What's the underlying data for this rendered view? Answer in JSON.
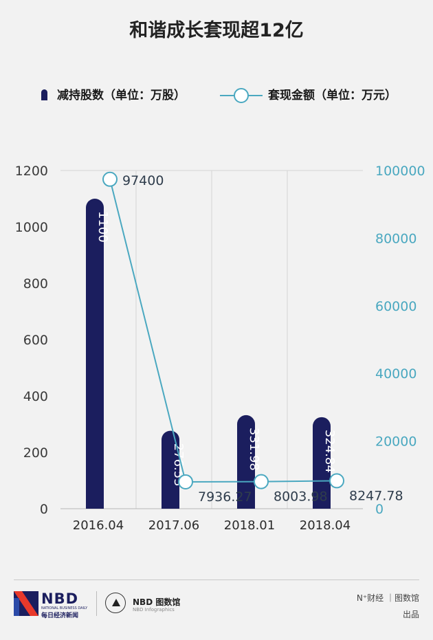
{
  "title": "和谐成长套现超12亿",
  "legend": {
    "bar_label": "减持股数（单位：万股）",
    "line_label": "套现金额（单位：万元）"
  },
  "colors": {
    "bar": "#1b1e5e",
    "line": "#4aa8c0",
    "grid": "#d4d4d4",
    "background": "#f2f2f2"
  },
  "chart_data": {
    "type": "bar",
    "categories": [
      "2016.04",
      "2017.06",
      "2018.01",
      "2018.04"
    ],
    "series": [
      {
        "name": "减持股数（单位：万股）",
        "type": "bar",
        "axis": "left",
        "values": [
          1100,
          276.53,
          331.98,
          324.84
        ]
      },
      {
        "name": "套现金额（单位：万元）",
        "type": "line",
        "axis": "right",
        "values": [
          97400,
          7936.27,
          8003.98,
          8247.78
        ]
      }
    ],
    "bar_labels": [
      "1100",
      "276.53",
      "331.98",
      "324.84"
    ],
    "line_labels": [
      "97400",
      "7936.27",
      "8003.98",
      "8247.78"
    ],
    "y_left": {
      "min": 0,
      "max": 1200,
      "ticks": [
        0,
        200,
        400,
        600,
        800,
        1000,
        1200
      ]
    },
    "y_right": {
      "min": 0,
      "max": 100000,
      "ticks": [
        0,
        20000,
        40000,
        60000,
        80000,
        100000
      ]
    },
    "grid": true,
    "legend_position": "top"
  },
  "footer": {
    "brand_name": "NBD",
    "brand_sub_en": "NATIONAL BUSINESS DAILY",
    "brand_sub_cn": "每日经济新闻",
    "infographics_name": "NBD 图数馆",
    "infographics_sub": "NBD Infographics",
    "credit_line1": "N⁺财经 ｜图数馆",
    "credit_line2": "出品"
  }
}
